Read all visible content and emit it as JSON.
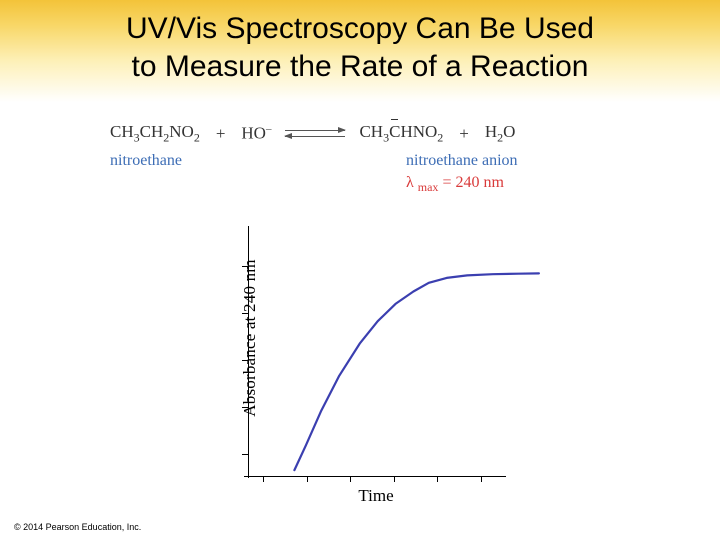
{
  "title": {
    "line1": "UV/Vis Spectroscopy Can Be Used",
    "line2": "to Measure the Rate of a Reaction",
    "fontsize": 30,
    "color": "#000000"
  },
  "title_band": {
    "gradient_top": "#f3c339",
    "gradient_bottom": "#ffffff"
  },
  "reaction": {
    "reactant1_html": "CH<span class='sub'>3</span>CH<span class='sub'>2</span>NO<span class='sub'>2</span>",
    "plus": "+",
    "reactant2_html": "HO<span class='sup'>–</span>",
    "product1_html": "CH<span class='sub'>3</span><span class='overbar'>C</span>HNO<span class='sub'>2</span>",
    "product2_html": "H<span class='sub'>2</span>O",
    "label_reactant": "nitroethane",
    "label_product": "nitroethane anion",
    "lambda_html": "λ <span style='font-size:12px;vertical-align:sub'>max</span> = 240 nm",
    "label_color": "#3d6db5",
    "lambda_color": "#d93a3a",
    "text_color": "#333333"
  },
  "chart": {
    "type": "line",
    "xlabel": "Time",
    "ylabel": "Absorbance at 240 nm",
    "label_fontsize": 17,
    "xlim": [
      0,
      10
    ],
    "ylim": [
      0,
      1
    ],
    "axis_color": "#000000",
    "background_color": "#ffffff",
    "grid": false,
    "x_ticks": [
      0.6,
      2.3,
      4.0,
      5.7,
      7.4,
      9.1
    ],
    "y_ticks": [
      0.08,
      0.27,
      0.46,
      0.65,
      0.84
    ],
    "series": {
      "color": "#3b3fb0",
      "line_width": 2.2,
      "points_x": [
        0.25,
        0.7,
        1.3,
        2.0,
        2.8,
        3.5,
        4.2,
        4.9,
        5.5,
        6.2,
        7.0,
        8.0,
        9.0,
        9.8
      ],
      "points_y": [
        0.04,
        0.14,
        0.28,
        0.42,
        0.55,
        0.64,
        0.71,
        0.76,
        0.795,
        0.815,
        0.825,
        0.83,
        0.832,
        0.833
      ]
    }
  },
  "footer": {
    "copyright": "© 2014 Pearson Education, Inc."
  }
}
